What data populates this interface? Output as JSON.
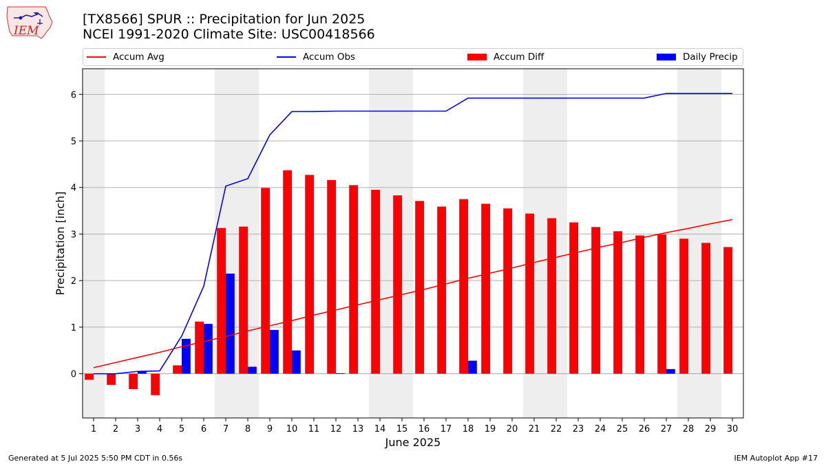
{
  "logo_text": "IEM",
  "title_line1": "[TX8566] SPUR :: Precipitation for Jun 2025",
  "title_line2": "NCEI 1991-2020 Climate Site: USC00418566",
  "footer_left": "Generated at 5 Jul 2025 5:50 PM CDT in 0.56s",
  "footer_right": "IEM Autoplot App #17",
  "colors": {
    "accum_avg": "#ff0000",
    "accum_obs": "#0000ff",
    "accum_diff": "#ff0000",
    "daily_precip": "#0000ff",
    "weekend_shade": "#eeeeee",
    "grid": "#b0b0b0"
  },
  "chart_data": {
    "type": "bar",
    "xlabel": "June 2025",
    "ylabel": "Precipitation [inch]",
    "xlim": [
      0.5,
      30.5
    ],
    "ylim": [
      -0.95,
      6.55
    ],
    "yticks": [
      0,
      1,
      2,
      3,
      4,
      5,
      6
    ],
    "grid": true,
    "legend_position": "top",
    "x": [
      1,
      2,
      3,
      4,
      5,
      6,
      7,
      8,
      9,
      10,
      11,
      12,
      13,
      14,
      15,
      16,
      17,
      18,
      19,
      20,
      21,
      22,
      23,
      24,
      25,
      26,
      27,
      28,
      29,
      30
    ],
    "weekend_days": [
      1,
      7,
      8,
      14,
      15,
      21,
      22,
      28,
      29
    ],
    "series": [
      {
        "name": "Accum Avg",
        "kind": "line",
        "values": [
          0.13,
          0.24,
          0.35,
          0.46,
          0.58,
          0.69,
          0.8,
          0.92,
          1.03,
          1.14,
          1.26,
          1.37,
          1.48,
          1.59,
          1.7,
          1.81,
          1.93,
          2.05,
          2.16,
          2.27,
          2.39,
          2.5,
          2.61,
          2.72,
          2.82,
          2.93,
          3.03,
          3.12,
          3.22,
          3.31
        ]
      },
      {
        "name": "Accum Obs",
        "kind": "line",
        "values": [
          0.0,
          0.0,
          0.05,
          0.06,
          0.81,
          1.88,
          4.03,
          4.19,
          5.13,
          5.63,
          5.63,
          5.64,
          5.64,
          5.64,
          5.64,
          5.64,
          5.64,
          5.92,
          5.92,
          5.92,
          5.92,
          5.92,
          5.92,
          5.92,
          5.92,
          5.92,
          6.02,
          6.02,
          6.02,
          6.02
        ]
      },
      {
        "name": "Accum Diff",
        "kind": "bar",
        "values": [
          -0.13,
          -0.24,
          -0.33,
          -0.46,
          0.18,
          1.12,
          3.13,
          3.16,
          3.99,
          4.37,
          4.27,
          4.16,
          4.05,
          3.95,
          3.83,
          3.71,
          3.59,
          3.75,
          3.65,
          3.55,
          3.44,
          3.34,
          3.25,
          3.15,
          3.06,
          2.97,
          2.99,
          2.9,
          2.81,
          2.72
        ]
      },
      {
        "name": "Daily Precip",
        "kind": "bar",
        "values": [
          0,
          0,
          0.05,
          0,
          0.75,
          1.07,
          2.15,
          0.15,
          0.94,
          0.5,
          0,
          0.01,
          0,
          0,
          0,
          0,
          0,
          0.28,
          0,
          0,
          0,
          0,
          0,
          0,
          0,
          0,
          0.1,
          0,
          0,
          0
        ]
      }
    ]
  }
}
